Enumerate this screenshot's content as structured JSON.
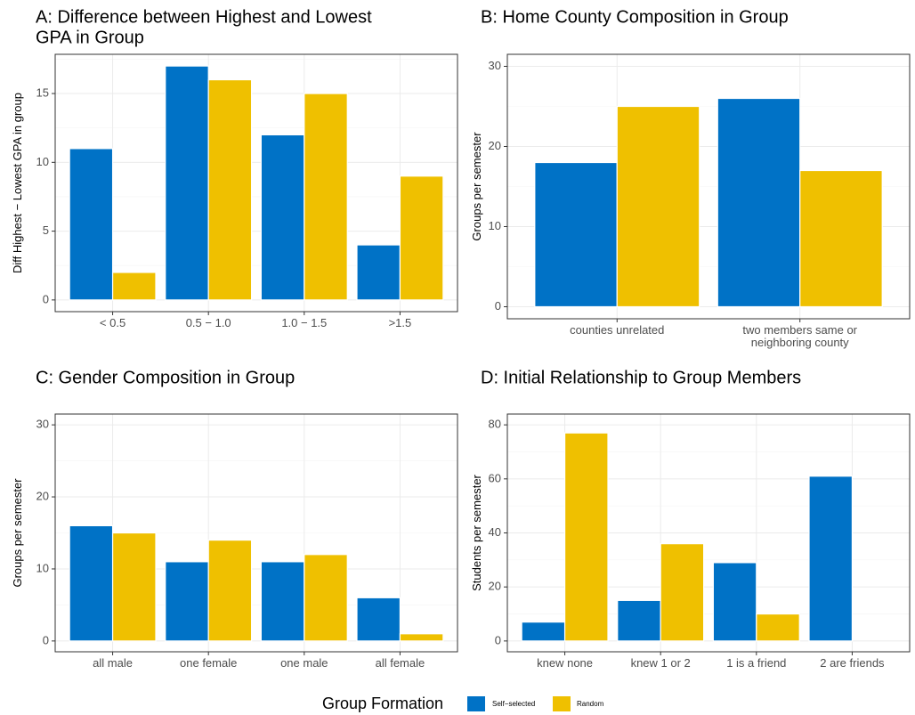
{
  "colors": {
    "self_selected": "#0072c6",
    "random": "#efc000"
  },
  "legend": {
    "title": "Group Formation",
    "items": [
      {
        "label": "Self−selected",
        "color": "#0072c6"
      },
      {
        "label": "Random",
        "color": "#efc000"
      }
    ]
  },
  "chart_data": [
    {
      "id": "A",
      "type": "bar",
      "title": [
        "A: Difference between Highest and Lowest",
        "GPA in Group"
      ],
      "xlabel": "",
      "ylabel": "Diff Highest − Lowest GPA in group",
      "categories": [
        [
          "< 0.5"
        ],
        [
          "0.5 − 1.0"
        ],
        [
          "1.0 − 1.5"
        ],
        [
          ">1.5"
        ]
      ],
      "series": [
        {
          "name": "Self−selected",
          "values": [
            11,
            17,
            12,
            4
          ]
        },
        {
          "name": "Random",
          "values": [
            2,
            16,
            15,
            9
          ]
        }
      ],
      "ylim": [
        -0.85,
        17.85
      ],
      "yticks": [
        0,
        5,
        10,
        15
      ],
      "grid": true
    },
    {
      "id": "B",
      "type": "bar",
      "title": [
        "B: Home County Composition in Group"
      ],
      "xlabel": "",
      "ylabel": "Groups per semester",
      "categories": [
        [
          "counties unrelated"
        ],
        [
          "two members same or",
          "neighboring county"
        ]
      ],
      "series": [
        {
          "name": "Self−selected",
          "values": [
            18,
            26
          ]
        },
        {
          "name": "Random",
          "values": [
            25,
            17
          ]
        }
      ],
      "ylim": [
        -1.5,
        31.5
      ],
      "yticks": [
        0,
        10,
        20,
        30
      ],
      "grid": true
    },
    {
      "id": "C",
      "type": "bar",
      "title": [
        "C: Gender Composition in Group"
      ],
      "xlabel": "",
      "ylabel": "Groups per semester",
      "categories": [
        [
          "all male"
        ],
        [
          "one female"
        ],
        [
          "one male"
        ],
        [
          "all female"
        ]
      ],
      "series": [
        {
          "name": "Self−selected",
          "values": [
            16,
            11,
            11,
            6
          ]
        },
        {
          "name": "Random",
          "values": [
            15,
            14,
            12,
            1
          ]
        }
      ],
      "ylim": [
        -1.5,
        31.5
      ],
      "yticks": [
        0,
        10,
        20,
        30
      ],
      "grid": true
    },
    {
      "id": "D",
      "type": "bar",
      "title": [
        "D: Initial Relationship to Group Members"
      ],
      "xlabel": "",
      "ylabel": "Students per semester",
      "categories": [
        [
          "knew none"
        ],
        [
          "knew 1 or 2"
        ],
        [
          "1 is a friend"
        ],
        [
          "2 are friends"
        ]
      ],
      "series": [
        {
          "name": "Self−selected",
          "values": [
            7,
            15,
            29,
            61
          ]
        },
        {
          "name": "Random",
          "values": [
            77,
            36,
            10,
            0
          ]
        }
      ],
      "ylim": [
        -4,
        84
      ],
      "yticks": [
        0,
        20,
        40,
        60,
        80
      ],
      "grid": true
    }
  ]
}
